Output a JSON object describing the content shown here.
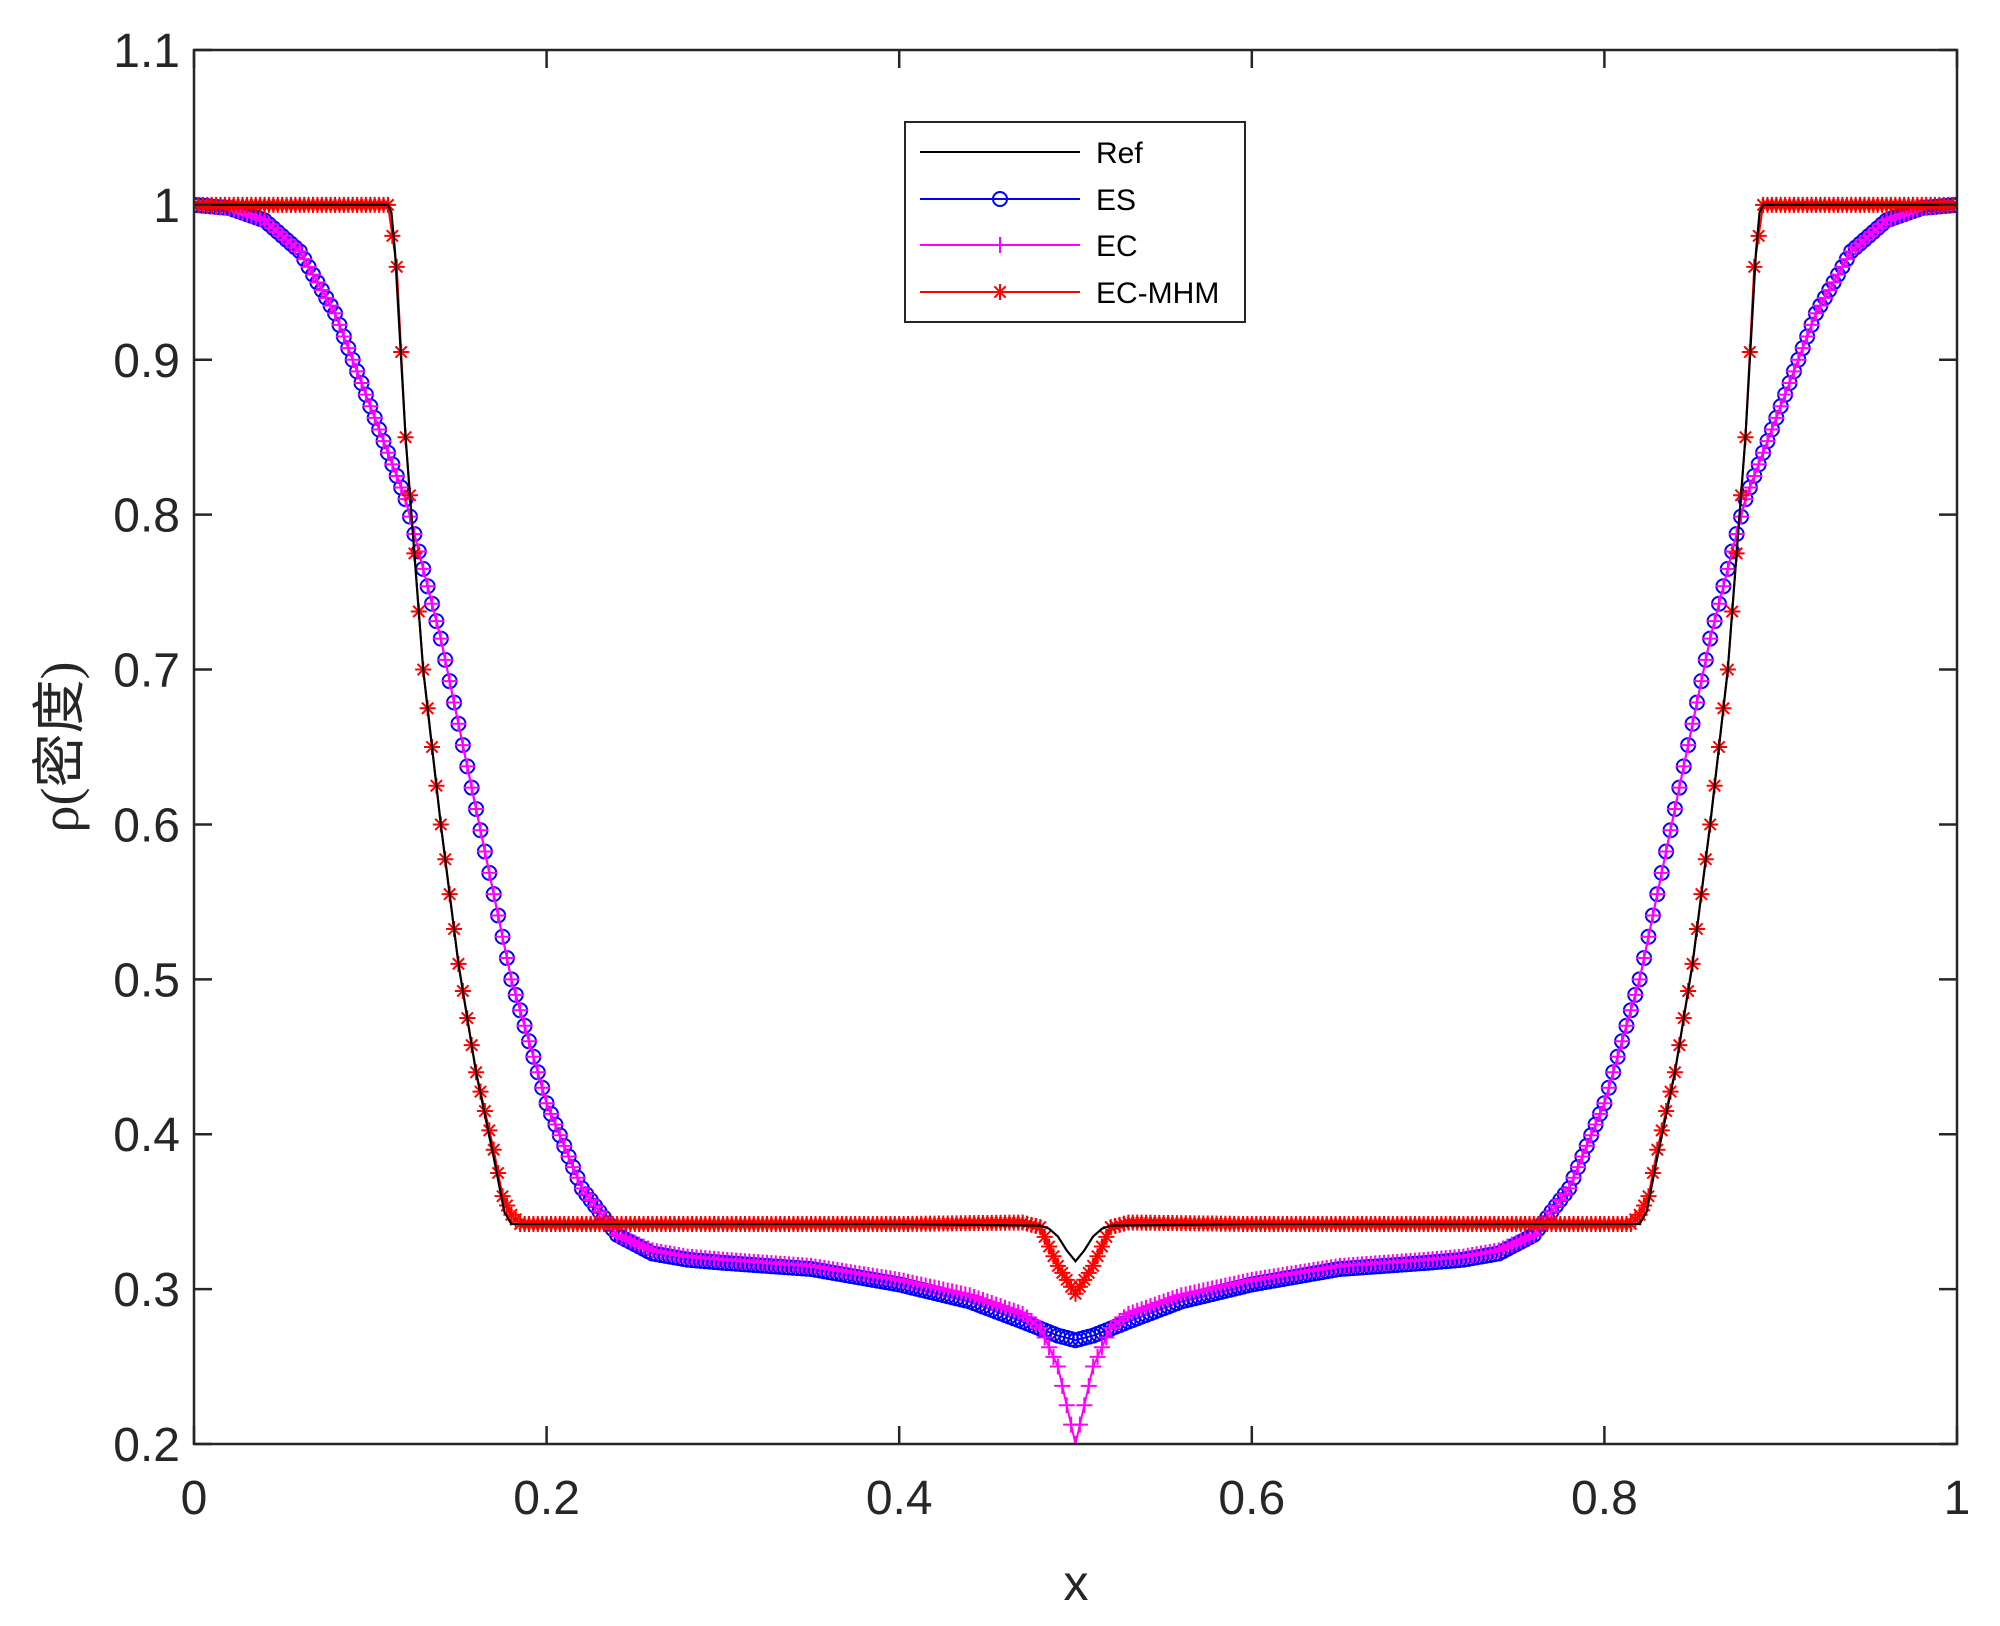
{
  "chart_data": {
    "type": "line",
    "xlabel": "x",
    "ylabel": "ρ(密度)",
    "xlim": [
      0,
      1
    ],
    "ylim": [
      0.2,
      1.1
    ],
    "xticks": [
      {
        "value": 0,
        "label": "0"
      },
      {
        "value": 0.2,
        "label": "0.2"
      },
      {
        "value": 0.4,
        "label": "0.4"
      },
      {
        "value": 0.6,
        "label": "0.6"
      },
      {
        "value": 0.8,
        "label": "0.8"
      },
      {
        "value": 1,
        "label": "1"
      }
    ],
    "yticks": [
      {
        "value": 0.2,
        "label": "0.2"
      },
      {
        "value": 0.3,
        "label": "0.3"
      },
      {
        "value": 0.4,
        "label": "0.4"
      },
      {
        "value": 0.5,
        "label": "0.5"
      },
      {
        "value": 0.6,
        "label": "0.6"
      },
      {
        "value": 0.7,
        "label": "0.7"
      },
      {
        "value": 0.8,
        "label": "0.8"
      },
      {
        "value": 0.9,
        "label": "0.9"
      },
      {
        "value": 1,
        "label": "1"
      },
      {
        "value": 1.1,
        "label": "1.1"
      }
    ],
    "grid": false,
    "legend_position": "top-center",
    "series": [
      {
        "name": "Ref",
        "color": "#000000",
        "marker": "none",
        "x": [
          0,
          0.11,
          0.112,
          0.114,
          0.12,
          0.13,
          0.14,
          0.15,
          0.16,
          0.17,
          0.176,
          0.18,
          0.2,
          0.3,
          0.4,
          0.48,
          0.485,
          0.49,
          0.495,
          0.5,
          0.505,
          0.51,
          0.515,
          0.52,
          0.6,
          0.7,
          0.8,
          0.82,
          0.824,
          0.83,
          0.84,
          0.85,
          0.86,
          0.87,
          0.88,
          0.886,
          0.888,
          0.89,
          1
        ],
        "y": [
          1.0,
          1.0,
          0.995,
          0.97,
          0.85,
          0.7,
          0.6,
          0.51,
          0.44,
          0.385,
          0.35,
          0.342,
          0.342,
          0.342,
          0.342,
          0.341,
          0.339,
          0.334,
          0.325,
          0.318,
          0.325,
          0.334,
          0.339,
          0.341,
          0.342,
          0.342,
          0.342,
          0.342,
          0.35,
          0.385,
          0.44,
          0.51,
          0.6,
          0.7,
          0.85,
          0.97,
          0.995,
          1.0,
          1.0
        ]
      },
      {
        "name": "ES",
        "color": "#0000ff",
        "marker": "circle",
        "x": [
          0,
          0.02,
          0.04,
          0.06,
          0.08,
          0.1,
          0.12,
          0.14,
          0.16,
          0.18,
          0.2,
          0.22,
          0.24,
          0.26,
          0.28,
          0.3,
          0.35,
          0.4,
          0.44,
          0.47,
          0.49,
          0.5,
          0.51,
          0.53,
          0.56,
          0.6,
          0.65,
          0.7,
          0.72,
          0.74,
          0.76,
          0.78,
          0.8,
          0.82,
          0.84,
          0.86,
          0.88,
          0.9,
          0.92,
          0.94,
          0.96,
          0.98,
          1
        ],
        "y": [
          1.0,
          0.998,
          0.99,
          0.97,
          0.93,
          0.87,
          0.81,
          0.72,
          0.61,
          0.5,
          0.42,
          0.365,
          0.335,
          0.323,
          0.319,
          0.317,
          0.313,
          0.303,
          0.292,
          0.279,
          0.27,
          0.267,
          0.27,
          0.279,
          0.292,
          0.303,
          0.313,
          0.317,
          0.319,
          0.323,
          0.335,
          0.365,
          0.42,
          0.5,
          0.61,
          0.72,
          0.81,
          0.87,
          0.93,
          0.97,
          0.99,
          0.998,
          1.0
        ]
      },
      {
        "name": "EC",
        "color": "#ff00ff",
        "marker": "plus",
        "x": [
          0,
          0.02,
          0.04,
          0.06,
          0.08,
          0.1,
          0.12,
          0.14,
          0.16,
          0.18,
          0.2,
          0.22,
          0.24,
          0.26,
          0.28,
          0.3,
          0.35,
          0.4,
          0.44,
          0.47,
          0.48,
          0.49,
          0.495,
          0.5,
          0.505,
          0.51,
          0.52,
          0.53,
          0.56,
          0.6,
          0.65,
          0.7,
          0.72,
          0.74,
          0.76,
          0.78,
          0.8,
          0.82,
          0.84,
          0.86,
          0.88,
          0.9,
          0.92,
          0.94,
          0.96,
          0.98,
          1
        ],
        "y": [
          1.0,
          0.998,
          0.99,
          0.97,
          0.93,
          0.87,
          0.81,
          0.72,
          0.61,
          0.5,
          0.42,
          0.365,
          0.335,
          0.325,
          0.321,
          0.319,
          0.315,
          0.306,
          0.296,
          0.284,
          0.275,
          0.25,
          0.225,
          0.2,
          0.225,
          0.25,
          0.275,
          0.284,
          0.296,
          0.306,
          0.315,
          0.319,
          0.321,
          0.325,
          0.335,
          0.365,
          0.42,
          0.5,
          0.61,
          0.72,
          0.81,
          0.87,
          0.93,
          0.97,
          0.99,
          0.998,
          1.0
        ]
      },
      {
        "name": "EC-MHM",
        "color": "#ff0000",
        "marker": "star",
        "x": [
          0,
          0.11,
          0.115,
          0.12,
          0.13,
          0.14,
          0.15,
          0.16,
          0.17,
          0.175,
          0.18,
          0.185,
          0.2,
          0.3,
          0.4,
          0.47,
          0.48,
          0.49,
          0.5,
          0.51,
          0.52,
          0.53,
          0.6,
          0.7,
          0.8,
          0.815,
          0.82,
          0.825,
          0.83,
          0.84,
          0.85,
          0.86,
          0.87,
          0.88,
          0.885,
          0.89,
          1
        ],
        "y": [
          1.0,
          1.0,
          0.96,
          0.85,
          0.7,
          0.6,
          0.51,
          0.44,
          0.39,
          0.36,
          0.348,
          0.342,
          0.342,
          0.342,
          0.342,
          0.343,
          0.34,
          0.315,
          0.297,
          0.315,
          0.34,
          0.343,
          0.342,
          0.342,
          0.342,
          0.342,
          0.348,
          0.36,
          0.39,
          0.44,
          0.51,
          0.6,
          0.7,
          0.85,
          0.96,
          1.0,
          1.0
        ]
      }
    ]
  }
}
